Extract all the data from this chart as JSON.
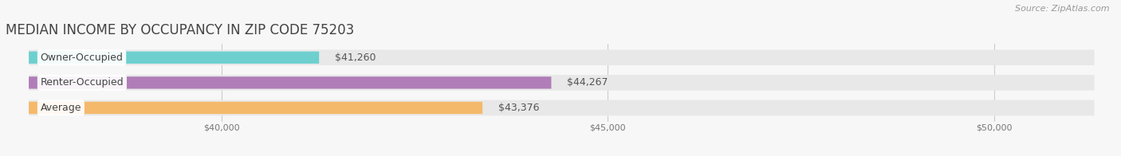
{
  "title": "MEDIAN INCOME BY OCCUPANCY IN ZIP CODE 75203",
  "source": "Source: ZipAtlas.com",
  "categories": [
    "Owner-Occupied",
    "Renter-Occupied",
    "Average"
  ],
  "values": [
    41260,
    44267,
    43376
  ],
  "bar_colors": [
    "#6ecfcf",
    "#b07db8",
    "#f5b96b"
  ],
  "bar_labels": [
    "$41,260",
    "$44,267",
    "$43,376"
  ],
  "xlim_min": 37200,
  "xlim_max": 51500,
  "xstart": 37500,
  "xticks": [
    40000,
    45000,
    50000
  ],
  "xtick_labels": [
    "$40,000",
    "$45,000",
    "$50,000"
  ],
  "background_color": "#f7f7f7",
  "bar_bg_color": "#e8e8e8",
  "title_fontsize": 12,
  "label_fontsize": 9,
  "cat_fontsize": 9,
  "tick_fontsize": 8,
  "source_fontsize": 8,
  "bar_height": 0.62
}
